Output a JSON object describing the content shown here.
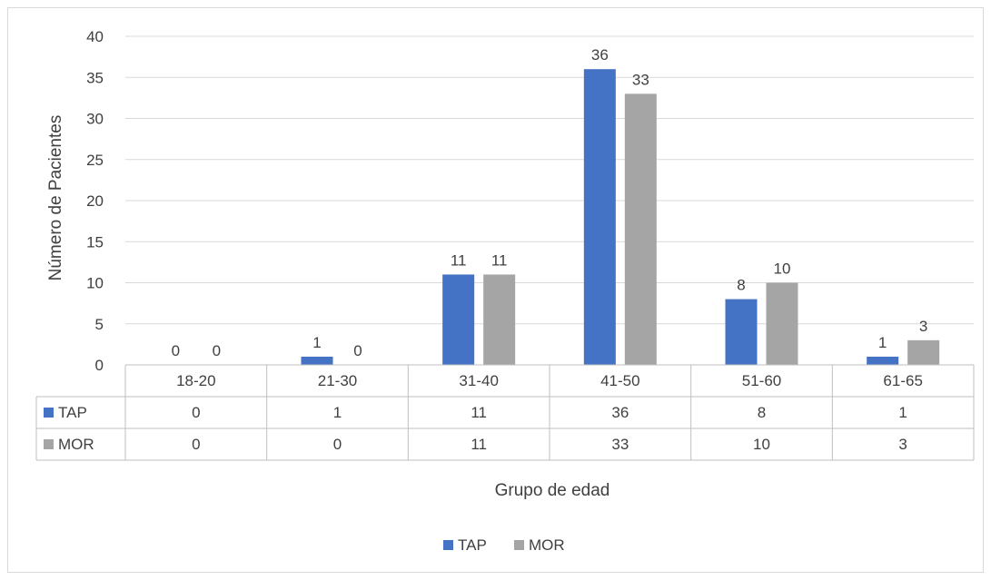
{
  "chart_data": {
    "type": "bar",
    "categories": [
      "18-20",
      "21-30",
      "31-40",
      "41-50",
      "51-60",
      "61-65"
    ],
    "series": [
      {
        "name": "TAP",
        "color": "#4472c4",
        "values": [
          0,
          1,
          11,
          36,
          8,
          1
        ]
      },
      {
        "name": "MOR",
        "color": "#a5a5a5",
        "values": [
          0,
          0,
          11,
          33,
          10,
          3
        ]
      }
    ],
    "xlabel": "Grupo de edad",
    "ylabel": "Número de Pacientes",
    "ylim": [
      0,
      40
    ],
    "yticks": [
      0,
      5,
      10,
      15,
      20,
      25,
      30,
      35,
      40
    ],
    "grid": true,
    "data_labels": true,
    "data_table": true,
    "legend_position": "bottom"
  }
}
